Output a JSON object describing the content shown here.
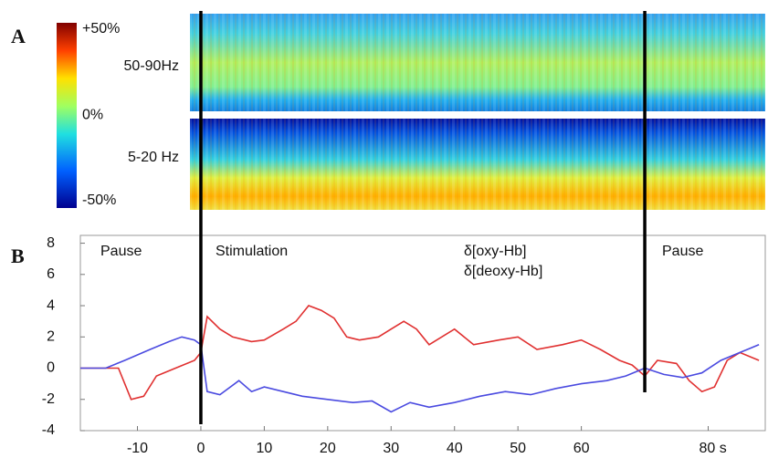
{
  "chart_data": [
    {
      "type": "heatmap",
      "panel_label": "A",
      "bands": [
        "50-90Hz",
        "5-20 Hz"
      ],
      "clim": [
        -50,
        50
      ],
      "cticks": [
        {
          "value": 50,
          "label": "+50%"
        },
        {
          "value": 0,
          "label": "0%"
        },
        {
          "value": -50,
          "label": "-50%"
        }
      ]
    },
    {
      "type": "line",
      "panel_label": "B",
      "annotations": [
        "Pause",
        "Stimulation",
        "Pause"
      ],
      "event_lines": [
        0,
        70
      ],
      "xlim": [
        -19,
        89
      ],
      "ylim": [
        -4,
        8.5
      ],
      "xticks": [
        -10,
        0,
        10,
        20,
        30,
        40,
        50,
        60,
        {
          "value": 80,
          "label": "80 s"
        }
      ],
      "yticks": [
        -4,
        -2,
        0,
        2,
        4,
        6,
        8
      ],
      "series": [
        {
          "name": "δ[oxy-Hb]",
          "color": "#e03030",
          "x": [
            -19,
            -13,
            -11,
            -9,
            -7,
            -4,
            -1,
            0,
            1,
            3,
            5,
            8,
            10,
            13,
            15,
            17,
            19,
            21,
            23,
            25,
            28,
            30,
            32,
            34,
            36,
            40,
            43,
            47,
            50,
            53,
            57,
            60,
            63,
            66,
            68,
            70,
            72,
            75,
            77,
            79,
            81,
            83,
            85,
            88
          ],
          "values": [
            0,
            0,
            -2,
            -1.8,
            -0.5,
            0,
            0.5,
            1,
            3.3,
            2.5,
            2,
            1.7,
            1.8,
            2.5,
            3,
            4,
            3.7,
            3.2,
            2,
            1.8,
            2,
            2.5,
            3,
            2.5,
            1.5,
            2.5,
            1.5,
            1.8,
            2,
            1.2,
            1.5,
            1.8,
            1.2,
            0.5,
            0.2,
            -0.5,
            0.5,
            0.3,
            -0.8,
            -1.5,
            -1.2,
            0.5,
            1,
            0.5
          ]
        },
        {
          "name": "δ[deoxy-Hb]",
          "color": "#4a4ae0",
          "x": [
            -19,
            -15,
            -12,
            -8,
            -5,
            -3,
            -1,
            0,
            1,
            3,
            6,
            8,
            10,
            13,
            16,
            20,
            24,
            27,
            30,
            33,
            36,
            40,
            44,
            48,
            52,
            56,
            60,
            64,
            67,
            70,
            73,
            76,
            79,
            82,
            85,
            88
          ],
          "values": [
            0,
            0,
            0.5,
            1.2,
            1.7,
            2,
            1.8,
            1.5,
            -1.5,
            -1.7,
            -0.8,
            -1.5,
            -1.2,
            -1.5,
            -1.8,
            -2,
            -2.2,
            -2.1,
            -2.8,
            -2.2,
            -2.5,
            -2.2,
            -1.8,
            -1.5,
            -1.7,
            -1.3,
            -1,
            -0.8,
            -0.5,
            0,
            -0.4,
            -0.6,
            -0.3,
            0.5,
            1,
            1.5
          ]
        }
      ]
    }
  ]
}
